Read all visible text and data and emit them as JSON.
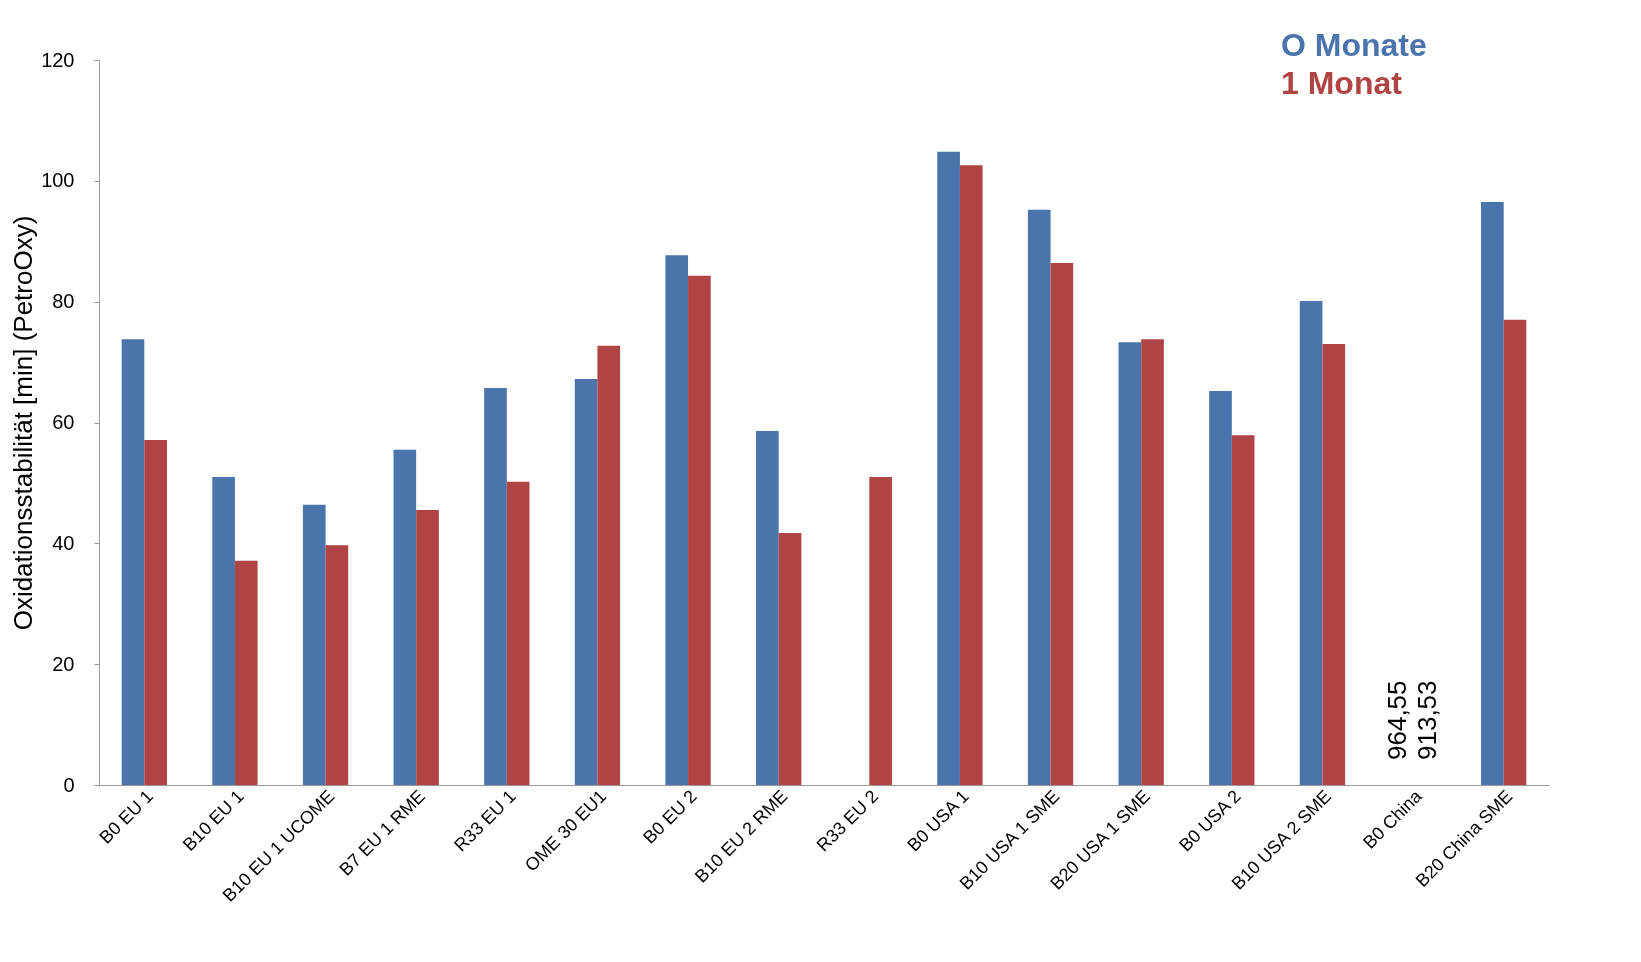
{
  "chart_data": {
    "type": "bar",
    "ylabel": "Oxidationsstabilität [min] (PetroOxy)",
    "categories": [
      "B0 EU 1",
      "B10 EU 1",
      "B10 EU 1 UCOME",
      "B7 EU 1 RME",
      "R33 EU 1",
      "OME 30 EU1",
      "B0 EU 2",
      "B10 EU 2 RME",
      "R33 EU 2",
      "B0 USA 1",
      "B10 USA 1 SME",
      "B20 USA 1 SME",
      "B0 USA 2",
      "B10 USA 2 SME",
      "B0 China",
      "B20 China SME"
    ],
    "series": [
      {
        "name": "O Monate",
        "color": "#4a74ab",
        "values": [
          73.8,
          51,
          46.4,
          55.5,
          65.7,
          67.2,
          87.7,
          58.6,
          null,
          104.8,
          95.2,
          73.3,
          65.2,
          80.1,
          null,
          96.5
        ]
      },
      {
        "name": "1  Monat",
        "color": "#b04444",
        "values": [
          57.1,
          37.1,
          39.7,
          45.5,
          50.2,
          72.7,
          84.3,
          41.7,
          51,
          102.6,
          86.4,
          73.8,
          57.9,
          73,
          null,
          77
        ]
      }
    ],
    "ylim": [
      0,
      120
    ],
    "yticks": [
      0,
      20,
      40,
      60,
      80,
      100,
      120
    ],
    "grid": false,
    "legend": "top right",
    "annotations": [
      "964,55",
      "913,53"
    ]
  }
}
